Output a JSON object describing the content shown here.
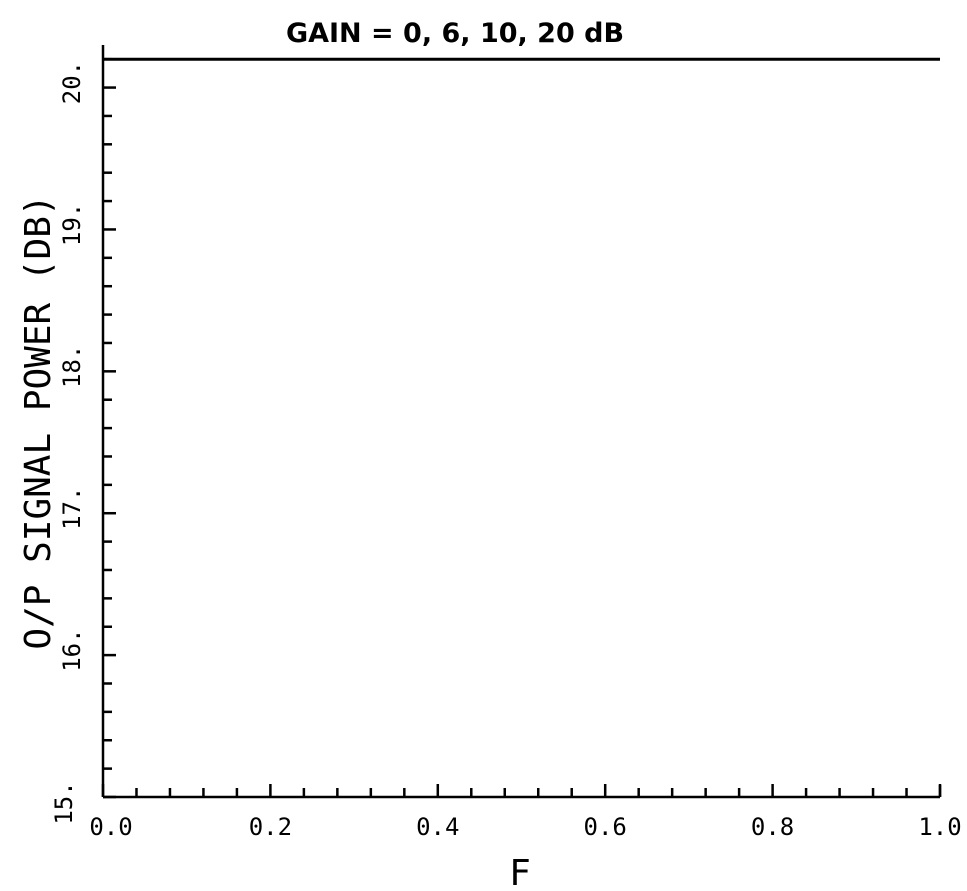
{
  "chart_data": {
    "type": "line",
    "title": "GAIN = 0, 6, 10, 20 dB",
    "xlabel": "F",
    "ylabel": "O/P SIGNAL POWER (DB)",
    "xlim": [
      0.0,
      1.0
    ],
    "ylim": [
      15.0,
      20.3
    ],
    "x_ticks": [
      0.0,
      0.2,
      0.4,
      0.6,
      0.8,
      1.0
    ],
    "x_tick_labels": [
      "0.0",
      "0.2",
      "0.4",
      "0.6",
      "0.8",
      "1.0"
    ],
    "y_ticks": [
      15.0,
      16.0,
      17.0,
      18.0,
      19.0,
      20.0
    ],
    "y_tick_labels": [
      "15.",
      "16.",
      "17.",
      "18.",
      "19.",
      "20."
    ],
    "x_minor_step": 0.04,
    "y_minor_step": 0.2,
    "grid": false,
    "legend": "none",
    "series": [
      {
        "x": [
          0.0,
          1.0
        ],
        "values": [
          20.2,
          20.2
        ]
      }
    ]
  }
}
